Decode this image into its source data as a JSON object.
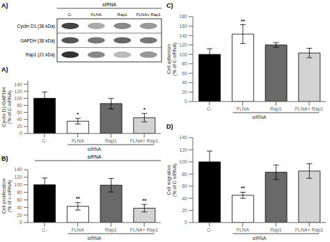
{
  "chart_data": [
    {
      "type": "blot",
      "title": "A)",
      "xlabel": "siRNA",
      "categories": [
        "C-",
        "FLNA",
        "Rap1",
        "FLNA+ Rap1"
      ],
      "series": [
        {
          "name": "Cyclin D1 (36 kDa)",
          "colors": [
            "#444444",
            "#aaaaaa",
            "#888888",
            "#999999"
          ]
        },
        {
          "name": "GAPDH (36 kDa)",
          "colors": [
            "#555555",
            "#777777",
            "#666666",
            "#777777"
          ]
        },
        {
          "name": "Rap1 (21 kDa)",
          "colors": [
            "#333333",
            "#888888",
            "#bbbbbb",
            "#999999"
          ]
        }
      ]
    },
    {
      "type": "bar",
      "title": "A)",
      "xlabel": "siRNA",
      "ylabel": "Cyclin D1/GAPDH\n(% of C-siRNA)",
      "categories": [
        "C-",
        "FLNA",
        "Rap1",
        "FLNA+ Rap1"
      ],
      "values": [
        100,
        35,
        85,
        45
      ],
      "errors": [
        18,
        8,
        15,
        12
      ],
      "annotations": [
        null,
        "*",
        null,
        "*"
      ],
      "colors": [
        "black",
        "white",
        "dimgray",
        "lightgray"
      ],
      "ylim": [
        0,
        150
      ],
      "yticks": [
        0,
        20,
        40,
        60,
        80,
        100,
        120,
        140
      ],
      "grid": false
    },
    {
      "type": "bar",
      "title": "B)",
      "subtitle": "siRNA",
      "xlabel": "siRNA",
      "ylabel": "Cell proliferation\n(% of c-siRNA)",
      "categories": [
        "C-",
        "FLNA",
        "Rap1",
        "FLNA+ Rap1"
      ],
      "values": [
        100,
        43,
        99,
        38
      ],
      "errors": [
        18,
        10,
        18,
        10
      ],
      "annotations": [
        null,
        "**",
        null,
        "**"
      ],
      "colors": [
        "black",
        "white",
        "dimgray",
        "lightgray"
      ],
      "ylim": [
        0,
        140
      ],
      "yticks": [
        0,
        20,
        40,
        60,
        80,
        100,
        120,
        140
      ],
      "grid": false
    },
    {
      "type": "bar",
      "title": "C)",
      "xlabel": "siRNA",
      "ylabel": "Cell adhesion\n(% of C-siRNA)",
      "categories": [
        "C-",
        "FLNA",
        "Rap1",
        "FLNA+ Rap1"
      ],
      "values": [
        100,
        143,
        120,
        103
      ],
      "errors": [
        12,
        20,
        5,
        10
      ],
      "annotations": [
        null,
        "**",
        null,
        null
      ],
      "colors": [
        "black",
        "white",
        "dimgray",
        "lightgray"
      ],
      "ylim": [
        0,
        180
      ],
      "yticks": [
        0,
        20,
        40,
        60,
        80,
        100,
        120,
        140,
        160,
        180
      ],
      "grid": false
    },
    {
      "type": "bar",
      "title": "D)",
      "xlabel": "siRNA",
      "ylabel": "Cell migration\n(% of C-siRNA)",
      "categories": [
        "C-",
        "FLNA",
        "Rap1",
        "FLNA+ Rap1"
      ],
      "values": [
        100,
        45,
        83,
        85
      ],
      "errors": [
        18,
        5,
        12,
        12
      ],
      "annotations": [
        null,
        "**",
        null,
        null
      ],
      "colors": [
        "black",
        "white",
        "dimgray",
        "lightgray"
      ],
      "ylim": [
        0,
        140
      ],
      "yticks": [
        0,
        20,
        40,
        60,
        80,
        100,
        120,
        140
      ],
      "grid": false
    }
  ]
}
